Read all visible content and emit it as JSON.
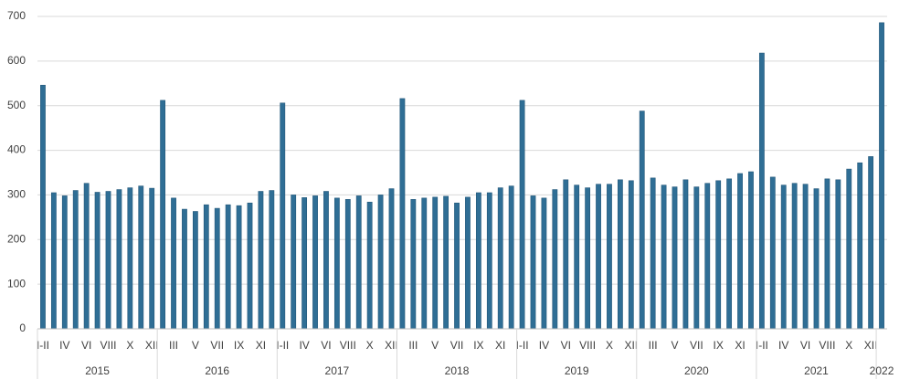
{
  "chart_data": {
    "type": "bar",
    "color": "#2f6e95",
    "grid": true,
    "ylim": [
      0,
      700
    ],
    "yticks": [
      0,
      100,
      200,
      300,
      400,
      500,
      600,
      700
    ],
    "categories": [
      "I-II",
      null,
      "IV",
      null,
      "VI",
      null,
      "VIII",
      null,
      "X",
      null,
      "XII",
      null,
      "III",
      null,
      "V",
      null,
      "VII",
      null,
      "IX",
      null,
      "XI",
      null,
      "I-II",
      null,
      "IV",
      null,
      "VI",
      null,
      "VIII",
      null,
      "X",
      null,
      "XII",
      null,
      "III",
      null,
      "V",
      null,
      "VII",
      null,
      "IX",
      null,
      "XI",
      null,
      "I-II",
      null,
      "IV",
      null,
      "VI",
      null,
      "VIII",
      null,
      "X",
      null,
      "XII",
      null,
      "III",
      null,
      "V",
      null,
      "VII",
      null,
      "IX",
      null,
      "XI",
      null,
      "I-II",
      null,
      "IV",
      null,
      "VI",
      null,
      "VIII",
      null,
      "X",
      null,
      "XII",
      null
    ],
    "groups": [
      "2015",
      "2016",
      "2017",
      "2018",
      "2019",
      "2020",
      "2021",
      "2022"
    ],
    "values": [
      546,
      305,
      298,
      310,
      326,
      306,
      308,
      312,
      316,
      320,
      315,
      512,
      293,
      268,
      263,
      278,
      270,
      278,
      276,
      282,
      308,
      310,
      506,
      300,
      294,
      298,
      308,
      293,
      290,
      298,
      284,
      300,
      314,
      516,
      290,
      293,
      295,
      297,
      282,
      295,
      305,
      305,
      316,
      320,
      512,
      298,
      293,
      312,
      334,
      322,
      316,
      324,
      324,
      334,
      332,
      488,
      338,
      322,
      318,
      334,
      318,
      326,
      332,
      336,
      348,
      352,
      618,
      340,
      322,
      326,
      324,
      314,
      336,
      334,
      358,
      372,
      386,
      686
    ]
  }
}
